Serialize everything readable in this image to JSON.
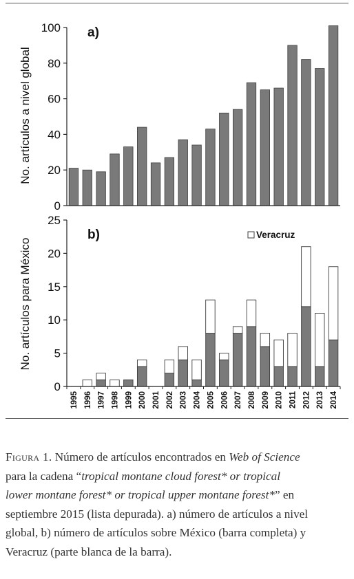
{
  "chart_data": [
    {
      "type": "bar",
      "panel_label": "a)",
      "ylabel": "No. artículos a nivel global",
      "ylim": [
        0,
        100
      ],
      "yticks": [
        0,
        20,
        40,
        60,
        80,
        100
      ],
      "categories": [
        "1995",
        "1996",
        "1997",
        "1998",
        "1999",
        "2000",
        "2001",
        "2002",
        "2003",
        "2004",
        "2005",
        "2006",
        "2007",
        "2008",
        "2009",
        "2010",
        "2011",
        "2012",
        "2013",
        "2014"
      ],
      "values": [
        21,
        20,
        19,
        29,
        33,
        44,
        24,
        27,
        37,
        34,
        43,
        52,
        54,
        69,
        65,
        66,
        90,
        82,
        77,
        101
      ],
      "colors": {
        "bar": "#7a7a7a",
        "edge": "#3c3c3c"
      }
    },
    {
      "type": "bar",
      "stacked": true,
      "panel_label": "b)",
      "ylabel": "No. artículos para México",
      "ylim": [
        0,
        25
      ],
      "yticks": [
        0,
        5,
        10,
        15,
        20,
        25
      ],
      "categories": [
        "1995",
        "1996",
        "1997",
        "1998",
        "1999",
        "2000",
        "2001",
        "2002",
        "2003",
        "2004",
        "2005",
        "2006",
        "2007",
        "2008",
        "2009",
        "2010",
        "2011",
        "2012",
        "2013",
        "2014"
      ],
      "legend": {
        "position": "top-right"
      },
      "series": [
        {
          "values": [
            0,
            0,
            1,
            0,
            1,
            3,
            0,
            2,
            4,
            1,
            8,
            4,
            8,
            9,
            6,
            3,
            3,
            12,
            3,
            7
          ],
          "color": "#7a7a7a"
        },
        {
          "name": "Veracruz",
          "values": [
            0,
            1,
            1,
            1,
            0,
            1,
            0,
            2,
            2,
            3,
            5,
            1,
            1,
            4,
            2,
            4,
            5,
            9,
            8,
            11
          ],
          "color": "#ffffff"
        }
      ],
      "totals": [
        0,
        1,
        2,
        1,
        1,
        4,
        0,
        4,
        6,
        4,
        13,
        5,
        9,
        13,
        8,
        7,
        8,
        21,
        11,
        18
      ]
    }
  ],
  "caption": {
    "figure_label": "Figura 1.",
    "l1_a": "Número de artículos encontrados en ",
    "l1_b": "Web of Science",
    "l2_a": "para la cadena “",
    "l2_b": "tropical montane cloud forest* or tropical",
    "l3_a": "lower montane forest* or tropical upper montane forest*",
    "l3_b": "” en",
    "l4": "septiembre 2015 (lista depurada).  a) número de artículos a nivel",
    "l5": "global, b) número de artículos sobre México (barra completa) y",
    "l6": "Veracruz (parte blanca de la barra)."
  }
}
